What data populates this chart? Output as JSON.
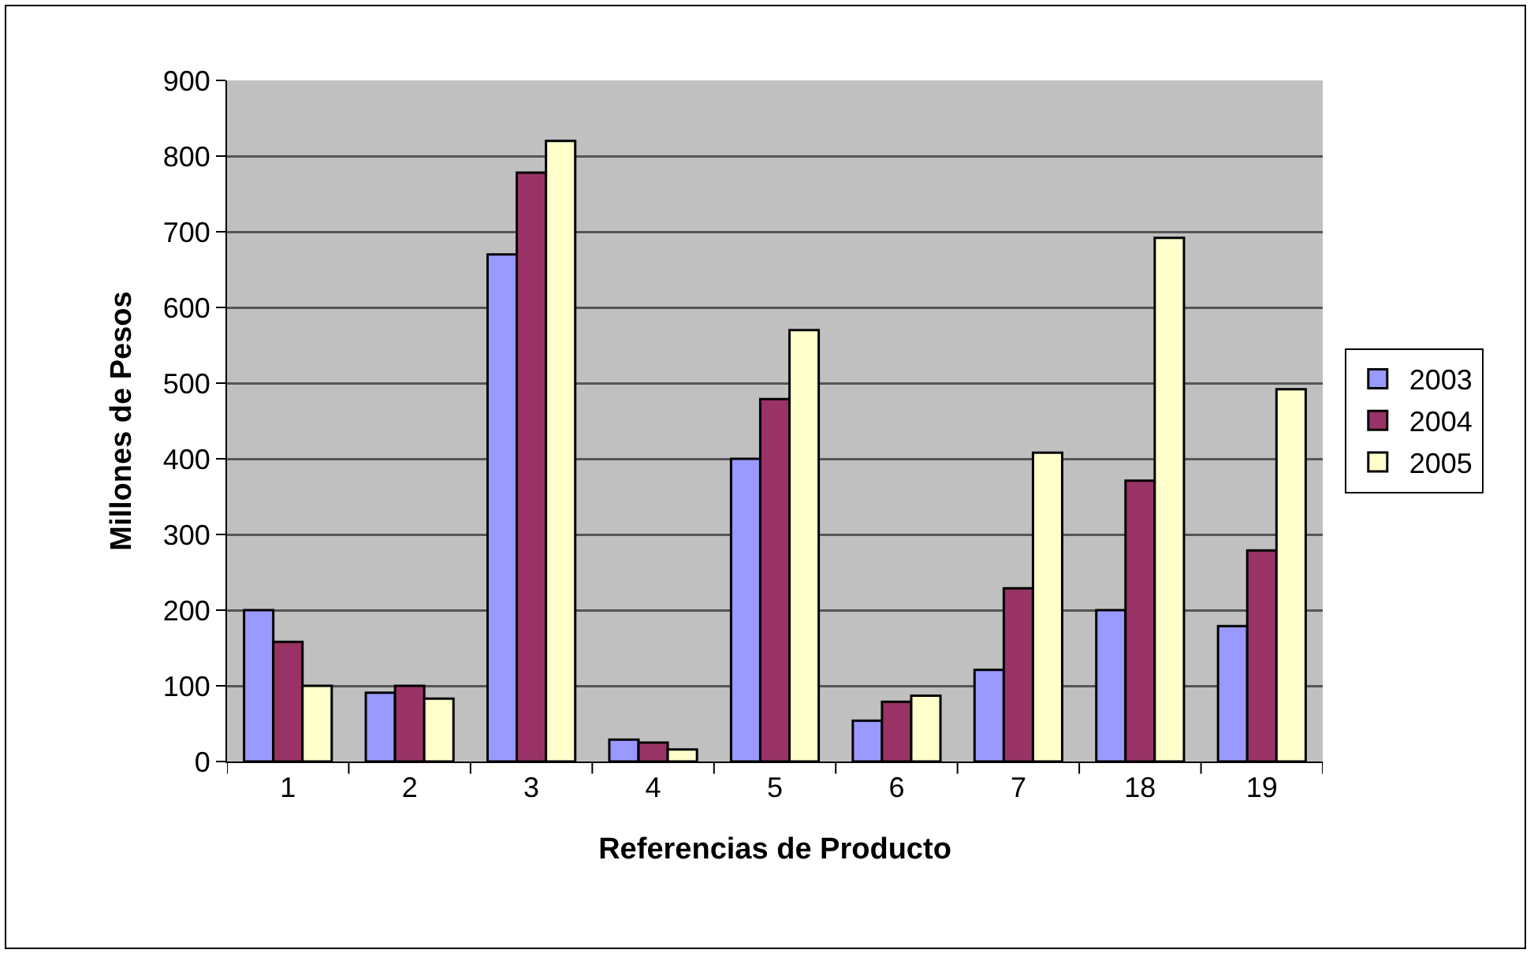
{
  "chart_data": {
    "type": "bar",
    "xlabel": "Referencias de Producto",
    "ylabel": "Millones de Pesos",
    "categories": [
      "1",
      "2",
      "3",
      "4",
      "5",
      "6",
      "7",
      "18",
      "19"
    ],
    "series": [
      {
        "name": "2003",
        "color": "#9999ff",
        "values": [
          200,
          91,
          670,
          29,
          400,
          54,
          121,
          200,
          179
        ]
      },
      {
        "name": "2004",
        "color": "#993366",
        "values": [
          158,
          100,
          778,
          25,
          479,
          79,
          229,
          371,
          279
        ]
      },
      {
        "name": "2005",
        "color": "#ffffcc",
        "values": [
          100,
          83,
          820,
          16,
          570,
          87,
          408,
          692,
          492
        ]
      }
    ],
    "ylim": [
      0,
      900
    ],
    "yticks": [
      0,
      100,
      200,
      300,
      400,
      500,
      600,
      700,
      800,
      900
    ],
    "grid": "y",
    "legend": "right"
  }
}
